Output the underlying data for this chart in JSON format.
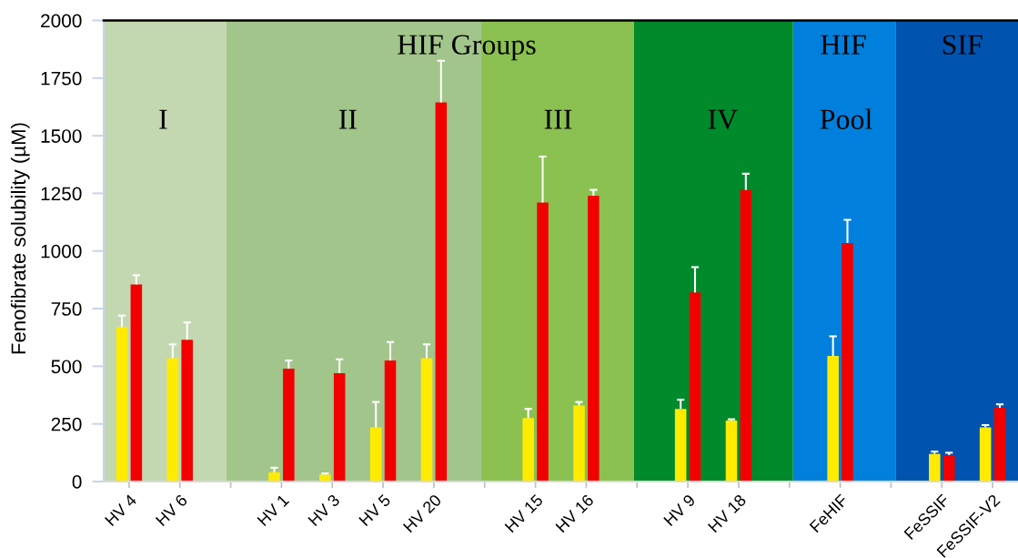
{
  "chart_data": {
    "type": "bar",
    "ylabel": "Fenofibrate solubility (µM)",
    "categories": [
      "HV 4",
      "HV 6",
      null,
      "HV 1",
      "HV 3",
      "HV 5",
      "HV 20",
      null,
      "HV 15",
      "HV 16",
      null,
      "HV 9",
      "HV 18",
      null,
      "FeHIF",
      null,
      "FeSSIF",
      "FeSSIF-V2"
    ],
    "series": [
      {
        "color": "#ffeb00",
        "values": [
          670,
          535,
          null,
          40,
          30,
          235,
          535,
          null,
          275,
          330,
          null,
          315,
          265,
          null,
          545,
          null,
          120,
          235
        ],
        "errors": [
          [
            670,
            720
          ],
          [
            535,
            595
          ],
          null,
          [
            40,
            60
          ],
          [
            30,
            35
          ],
          [
            235,
            345
          ],
          [
            535,
            595
          ],
          null,
          [
            275,
            315
          ],
          [
            330,
            345
          ],
          null,
          [
            315,
            355
          ],
          [
            265,
            270
          ],
          null,
          [
            545,
            630
          ],
          null,
          [
            120,
            130
          ],
          [
            235,
            245
          ]
        ]
      },
      {
        "color": "#f20000",
        "values": [
          855,
          615,
          null,
          490,
          470,
          525,
          1645,
          null,
          1210,
          1240,
          null,
          820,
          1265,
          null,
          1035,
          null,
          115,
          320
        ],
        "errors": [
          [
            855,
            895
          ],
          [
            615,
            690
          ],
          null,
          [
            490,
            525
          ],
          [
            470,
            530
          ],
          [
            525,
            605
          ],
          [
            1645,
            1825
          ],
          null,
          [
            1210,
            1410
          ],
          [
            1240,
            1265
          ],
          null,
          [
            820,
            930
          ],
          [
            1265,
            1335
          ],
          null,
          [
            1035,
            1135
          ],
          null,
          [
            115,
            125
          ],
          [
            320,
            335
          ]
        ]
      }
    ],
    "ylim": [
      0,
      2000
    ],
    "yticks": [
      0,
      250,
      500,
      750,
      1000,
      1250,
      1500,
      1750,
      2000
    ],
    "annotations": [
      "HIF Groups",
      "HIF",
      "SIF",
      "I",
      "II",
      "III",
      "IV",
      "Pool"
    ]
  }
}
